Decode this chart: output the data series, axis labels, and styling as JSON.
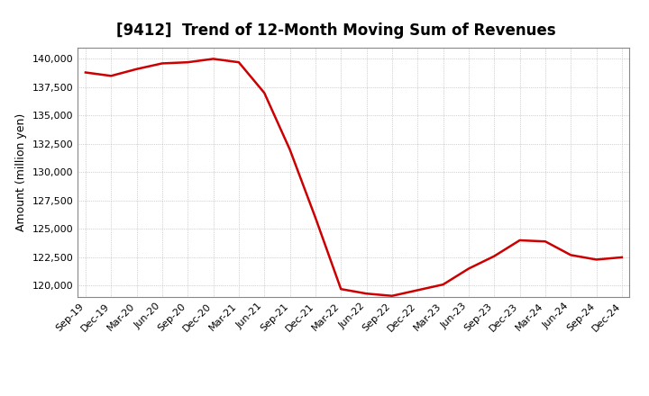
{
  "title": "[9412]  Trend of 12-Month Moving Sum of Revenues",
  "ylabel": "Amount (million yen)",
  "line_color": "#cc0000",
  "background_color": "#ffffff",
  "grid_color": "#aaaaaa",
  "ylim": [
    119000,
    141000
  ],
  "yticks": [
    120000,
    122500,
    125000,
    127500,
    130000,
    132500,
    135000,
    137500,
    140000
  ],
  "dates": [
    "Sep-19",
    "Dec-19",
    "Mar-20",
    "Jun-20",
    "Sep-20",
    "Dec-20",
    "Mar-21",
    "Jun-21",
    "Sep-21",
    "Dec-21",
    "Mar-22",
    "Jun-22",
    "Sep-22",
    "Dec-22",
    "Mar-23",
    "Jun-23",
    "Sep-23",
    "Dec-23",
    "Mar-24",
    "Jun-24",
    "Sep-24",
    "Dec-24"
  ],
  "values": [
    138800,
    138500,
    139100,
    139600,
    139700,
    140000,
    139700,
    137000,
    132000,
    126000,
    119700,
    119300,
    119100,
    119600,
    120100,
    121500,
    122600,
    124000,
    123900,
    122700,
    122300,
    122500
  ]
}
